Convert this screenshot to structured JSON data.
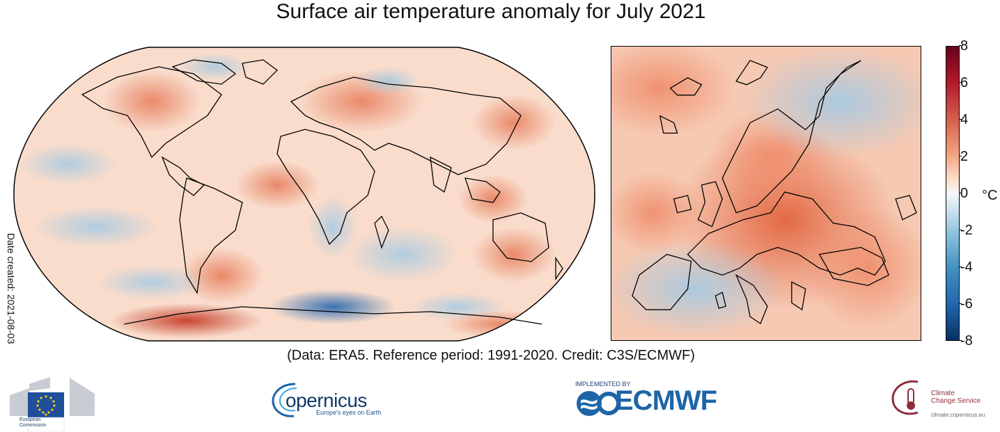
{
  "title": "Surface air temperature anomaly for July 2021",
  "date_created": "Date created: 2021-08-03",
  "credit": "(Data: ERA5.  Reference period: 1991-2020.  Credit: C3S/ECMWF)",
  "colorbar": {
    "unit": "°C",
    "ticks": [
      "8",
      "6",
      "4",
      "2",
      "0",
      "-2",
      "-4",
      "-6",
      "-8"
    ],
    "range": [
      -8,
      8
    ],
    "colors": [
      "#053061",
      "#2166ac",
      "#4393c3",
      "#92c5de",
      "#d1e5f0",
      "#f7f7f7",
      "#fddbc7",
      "#f4a582",
      "#d6604d",
      "#b2182b",
      "#67001f"
    ]
  },
  "logos": {
    "ec": {
      "line1": "European",
      "line2": "Commission"
    },
    "copernicus": {
      "word": "opernicus",
      "tagline": "Europe's eyes on Earth"
    },
    "ecmwf": {
      "implemented": "IMPLEMENTED BY",
      "word": "ECMWF"
    },
    "c3s": {
      "line1": "Climate",
      "line2": "Change Service",
      "url": "climate.copernicus.eu"
    }
  },
  "maps": {
    "world_label": "global anomaly map",
    "europe_label": "Europe anomaly map"
  }
}
